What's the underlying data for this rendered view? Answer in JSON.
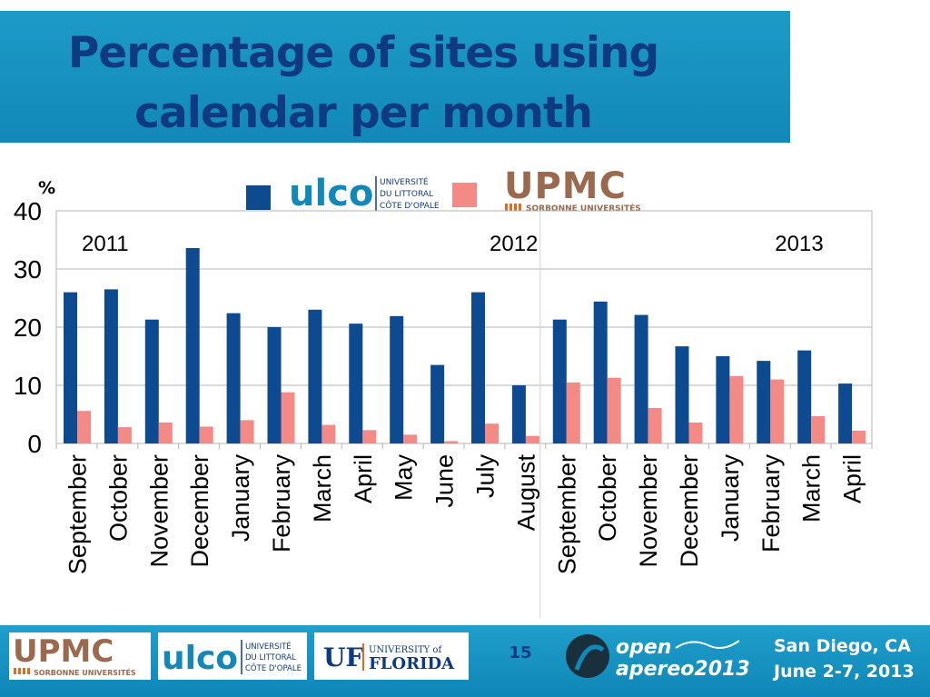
{
  "title_line1": "Percentage of sites  using",
  "title_line2": "calendar per month",
  "legend": {
    "ulco": {
      "wordmark": "ulco",
      "line1": "UNIVERSITÉ",
      "line2": "DU LITTORAL",
      "line3": "CÔTE D'OPALE",
      "color": "#0d4a8f"
    },
    "upmc": {
      "wordmark": "UPMC",
      "subtitle": "SORBONNE UNIVERSITÉS",
      "color": "#f48a86"
    }
  },
  "footer": {
    "page_number": "15",
    "upmc_logo": {
      "wordmark": "UPMC",
      "subtitle": "SORBONNE UNIVERSITÉS"
    },
    "ulco_logo": {
      "wordmark": "ulco",
      "line1": "UNIVERSITÉ",
      "line2": "DU LITTORAL",
      "line3": "CÔTE D'OPALE"
    },
    "uf_logo": {
      "mark": "UF",
      "line1": "UNIVERSITY of",
      "line2": "FLORIDA"
    },
    "apereo_logo": {
      "line1": "open",
      "line2": "apereo2013"
    },
    "city": "San Diego, CA",
    "dates": "June 2-7, 2013"
  },
  "chart_data": {
    "type": "bar",
    "ylabel": "%",
    "ylim": [
      0,
      40
    ],
    "yticks": [
      0,
      10,
      20,
      30,
      40
    ],
    "grid": true,
    "categories": [
      "September",
      "October",
      "November",
      "December",
      "January",
      "February",
      "March",
      "April",
      "May",
      "June",
      "July",
      "August",
      "September",
      "October",
      "November",
      "December",
      "January",
      "February",
      "March",
      "April"
    ],
    "year_labels": [
      {
        "text": "2011",
        "category_index": 0
      },
      {
        "text": "2012",
        "category_index": 10
      },
      {
        "text": "2013",
        "category_index": 17
      }
    ],
    "series": [
      {
        "name": "ULCO",
        "color": "#0d4a8f",
        "values": [
          26,
          26.5,
          21.3,
          33.6,
          22.4,
          20,
          23,
          20.6,
          21.9,
          13.5,
          26,
          10,
          21.3,
          24.4,
          22.1,
          16.7,
          15,
          14.2,
          16,
          10.3
        ]
      },
      {
        "name": "UPMC",
        "color": "#f48a86",
        "values": [
          5.6,
          2.8,
          3.6,
          2.9,
          4,
          8.8,
          3.2,
          2.3,
          1.5,
          0.4,
          3.4,
          1.3,
          10.5,
          11.3,
          6.1,
          3.6,
          11.6,
          11,
          4.7,
          2.2
        ]
      }
    ]
  }
}
